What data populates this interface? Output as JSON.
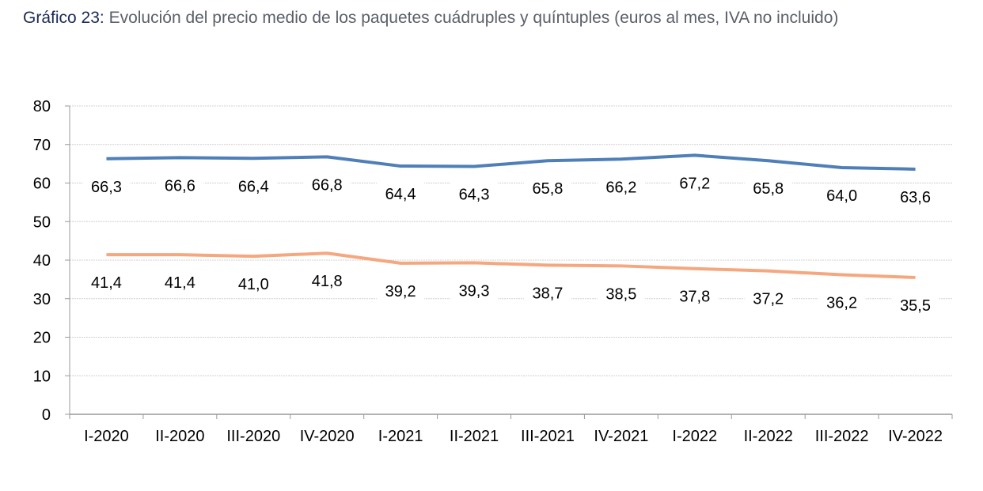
{
  "chart_data": {
    "type": "line",
    "title_prefix": "Gráfico 23:",
    "title": "Evolución del precio medio de los paquetes cuádruples y quíntuples (euros al mes, IVA no incluido)",
    "xlabel": "",
    "ylabel": "",
    "categories": [
      "I-2020",
      "II-2020",
      "III-2020",
      "IV-2020",
      "I-2021",
      "II-2021",
      "III-2021",
      "IV-2021",
      "I-2022",
      "II-2022",
      "III-2022",
      "IV-2022"
    ],
    "series": [
      {
        "values": [
          66.3,
          66.6,
          66.4,
          66.8,
          64.4,
          64.3,
          65.8,
          66.2,
          67.2,
          65.8,
          64.0,
          63.6
        ],
        "labels": [
          "66,3",
          "66,6",
          "66,4",
          "66,8",
          "64,4",
          "64,3",
          "65,8",
          "66,2",
          "67,2",
          "65,8",
          "64,0",
          "63,6"
        ],
        "color": "#4f7fb8"
      },
      {
        "values": [
          41.4,
          41.4,
          41.0,
          41.8,
          39.2,
          39.3,
          38.7,
          38.5,
          37.8,
          37.2,
          36.2,
          35.5
        ],
        "labels": [
          "41,4",
          "41,4",
          "41,0",
          "41,8",
          "39,2",
          "39,3",
          "38,7",
          "38,5",
          "37,8",
          "37,2",
          "36,2",
          "35,5"
        ],
        "color": "#f5a77f"
      }
    ],
    "ylim": [
      0,
      80
    ],
    "yticks": [
      "0",
      "10",
      "20",
      "30",
      "40",
      "50",
      "60",
      "70",
      "80"
    ],
    "grid": true,
    "legend": "none"
  }
}
